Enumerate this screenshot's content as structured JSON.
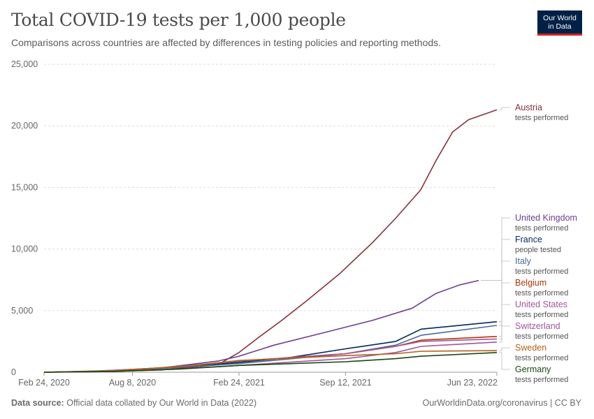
{
  "header": {
    "title": "Total COVID-19 tests per 1,000 people",
    "subtitle": "Comparisons across countries are affected by differences in testing policies and reporting methods.",
    "logo_line1": "Our World",
    "logo_line2": "in Data"
  },
  "footer": {
    "source_label": "Data source:",
    "source_text": "Official data collated by Our World in Data (2022)",
    "right_text": "OurWorldinData.org/coronavirus | CC BY"
  },
  "chart_data": {
    "type": "line",
    "title": "Total COVID-19 tests per 1,000 people",
    "subtitle": "Comparisons across countries are affected by differences in testing policies and reporting methods.",
    "xlabel": "",
    "ylabel": "",
    "x_ticks": [
      "Feb 24, 2020",
      "Aug 8, 2020",
      "Feb 24, 2021",
      "Sep 12, 2021",
      "Jun 23, 2022"
    ],
    "y_ticks": [
      0,
      5000,
      10000,
      15000,
      20000,
      25000
    ],
    "y_tick_labels": [
      "0",
      "5,000",
      "10,000",
      "15,000",
      "20,000",
      "25,000"
    ],
    "ylim": [
      0,
      25000
    ],
    "xlim": [
      "2020-02-24",
      "2022-06-23"
    ],
    "grid": "horizontal dashed",
    "legend_placement": "right, labels at line ends",
    "series": [
      {
        "name": "Austria",
        "metric": "tests performed",
        "color": "#883039",
        "points": [
          [
            "2020-02-24",
            0
          ],
          [
            "2020-06-01",
            40
          ],
          [
            "2020-10-01",
            180
          ],
          [
            "2020-12-01",
            420
          ],
          [
            "2021-01-15",
            600
          ],
          [
            "2021-02-24",
            1600
          ],
          [
            "2021-04-01",
            2800
          ],
          [
            "2021-05-15",
            4200
          ],
          [
            "2021-07-01",
            5800
          ],
          [
            "2021-09-01",
            8000
          ],
          [
            "2021-11-01",
            10500
          ],
          [
            "2021-12-15",
            12500
          ],
          [
            "2022-01-31",
            14800
          ],
          [
            "2022-03-01",
            17200
          ],
          [
            "2022-04-01",
            19500
          ],
          [
            "2022-05-01",
            20500
          ],
          [
            "2022-06-23",
            21300
          ]
        ]
      },
      {
        "name": "United Kingdom",
        "metric": "tests performed",
        "color": "#6d3e91",
        "points": [
          [
            "2020-02-24",
            0
          ],
          [
            "2020-06-01",
            80
          ],
          [
            "2020-10-01",
            350
          ],
          [
            "2021-01-15",
            900
          ],
          [
            "2021-02-24",
            1300
          ],
          [
            "2021-05-01",
            2200
          ],
          [
            "2021-08-01",
            3200
          ],
          [
            "2021-11-01",
            4200
          ],
          [
            "2022-01-15",
            5200
          ],
          [
            "2022-03-01",
            6400
          ],
          [
            "2022-04-15",
            7100
          ],
          [
            "2022-05-20",
            7450
          ]
        ]
      },
      {
        "name": "France",
        "metric": "people tested",
        "color": "#00295b",
        "points": [
          [
            "2020-02-24",
            0
          ],
          [
            "2020-07-01",
            100
          ],
          [
            "2020-11-01",
            400
          ],
          [
            "2021-02-24",
            800
          ],
          [
            "2021-06-01",
            1200
          ],
          [
            "2021-09-12",
            1900
          ],
          [
            "2021-12-15",
            2500
          ],
          [
            "2022-02-01",
            3500
          ],
          [
            "2022-06-23",
            4100
          ]
        ]
      },
      {
        "name": "Italy",
        "metric": "tests performed",
        "color": "#4c6a9c",
        "points": [
          [
            "2020-02-24",
            0
          ],
          [
            "2020-06-01",
            100
          ],
          [
            "2020-10-01",
            300
          ],
          [
            "2021-02-24",
            700
          ],
          [
            "2021-09-12",
            1500
          ],
          [
            "2021-12-15",
            2200
          ],
          [
            "2022-02-01",
            3000
          ],
          [
            "2022-06-23",
            3800
          ]
        ]
      },
      {
        "name": "Belgium",
        "metric": "tests performed",
        "color": "#b13507",
        "points": [
          [
            "2020-02-24",
            0
          ],
          [
            "2020-07-01",
            100
          ],
          [
            "2020-11-01",
            450
          ],
          [
            "2021-02-24",
            900
          ],
          [
            "2021-09-12",
            1500
          ],
          [
            "2021-12-15",
            2100
          ],
          [
            "2022-02-01",
            2600
          ],
          [
            "2022-06-23",
            2900
          ]
        ]
      },
      {
        "name": "United States",
        "metric": "tests performed",
        "color": "#a2559c",
        "points": [
          [
            "2020-02-24",
            0
          ],
          [
            "2020-06-01",
            80
          ],
          [
            "2020-10-01",
            350
          ],
          [
            "2021-02-24",
            900
          ],
          [
            "2021-09-12",
            1500
          ],
          [
            "2021-12-15",
            2100
          ],
          [
            "2022-02-01",
            2500
          ],
          [
            "2022-06-23",
            2700
          ]
        ]
      },
      {
        "name": "Switzerland",
        "metric": "tests performed",
        "color": "#a2559c",
        "points": [
          [
            "2020-02-24",
            0
          ],
          [
            "2020-07-01",
            60
          ],
          [
            "2020-11-01",
            250
          ],
          [
            "2021-02-24",
            550
          ],
          [
            "2021-09-12",
            1100
          ],
          [
            "2021-12-15",
            1600
          ],
          [
            "2022-02-01",
            2100
          ],
          [
            "2022-06-23",
            2450
          ]
        ]
      },
      {
        "name": "Sweden",
        "metric": "tests performed",
        "color": "#b16214",
        "points": [
          [
            "2020-02-24",
            0
          ],
          [
            "2020-07-01",
            100
          ],
          [
            "2020-12-01",
            550
          ],
          [
            "2021-02-24",
            950
          ],
          [
            "2021-09-12",
            1350
          ],
          [
            "2021-12-15",
            1500
          ],
          [
            "2022-02-01",
            1700
          ],
          [
            "2022-06-23",
            1750
          ]
        ]
      },
      {
        "name": "Germany",
        "metric": "tests performed",
        "color": "#18470f",
        "points": [
          [
            "2020-02-24",
            0
          ],
          [
            "2020-07-01",
            60
          ],
          [
            "2020-11-01",
            250
          ],
          [
            "2021-02-24",
            550
          ],
          [
            "2021-09-12",
            850
          ],
          [
            "2021-12-15",
            1100
          ],
          [
            "2022-02-01",
            1300
          ],
          [
            "2022-06-23",
            1600
          ]
        ]
      }
    ]
  }
}
